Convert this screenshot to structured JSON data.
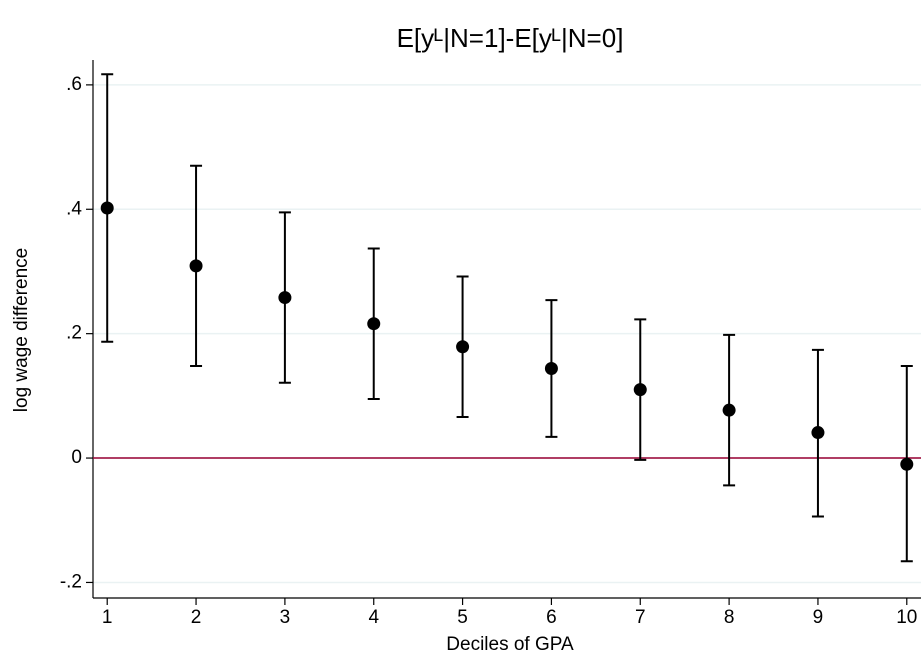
{
  "chart_data": {
    "type": "errorbar",
    "title": "E[yᴸ|N=1]-E[yᴸ|N=0]",
    "x_label": "Deciles of GPA",
    "y_label": "log wage difference",
    "x": [
      1,
      2,
      3,
      4,
      5,
      6,
      7,
      8,
      9,
      10
    ],
    "series": [
      {
        "color": "#000000",
        "values": [
          0.402,
          0.309,
          0.258,
          0.216,
          0.179,
          0.144,
          0.11,
          0.077,
          0.041,
          -0.01
        ],
        "lower": [
          0.187,
          0.148,
          0.121,
          0.095,
          0.066,
          0.034,
          -0.003,
          -0.044,
          -0.094,
          -0.166
        ],
        "upper": [
          0.617,
          0.47,
          0.395,
          0.337,
          0.292,
          0.254,
          0.223,
          0.198,
          0.174,
          0.148
        ]
      }
    ],
    "xlim": [
      0.84,
      10.16
    ],
    "ylim": [
      -0.225,
      0.64
    ],
    "xticks": [
      1,
      2,
      3,
      4,
      5,
      6,
      7,
      8,
      9,
      10
    ],
    "yticks": [
      {
        "value": -0.2,
        "label": "-.2"
      },
      0,
      {
        "value": 0.2,
        "label": ".2"
      },
      {
        "value": 0.4,
        "label": ".4"
      },
      {
        "value": 0.6,
        "label": ".6"
      }
    ],
    "grid": true,
    "reference_line": {
      "value": 0,
      "color": "#990033"
    }
  }
}
